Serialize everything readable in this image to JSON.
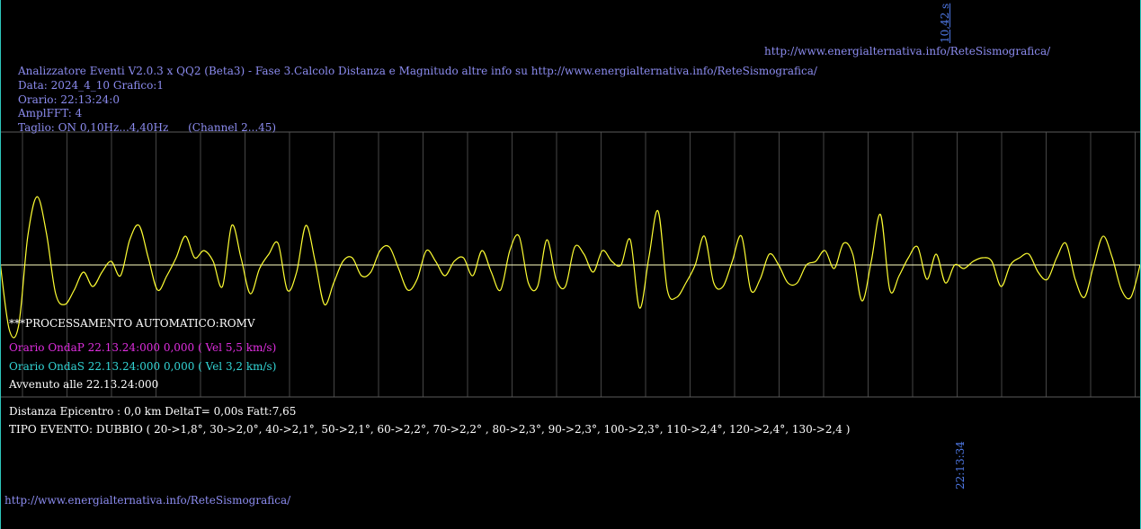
{
  "top_url": "http://www.energialternativa.info/ReteSismografica/",
  "time_marker_top": "10,42 s",
  "time_marker_bottom": "22:13:34",
  "header": {
    "title": "Analizzatore Eventi V2.0.3 x QQ2 (Beta3) - Fase 3.Calcolo Distanza e Magnitudo altre info su http://www.energialternativa.info/ReteSismografica/",
    "data": "Data: 2024_4_10 Grafico:1",
    "orario": "Orario: 22:13:24:0",
    "amplfft": "AmplFFT: 4",
    "taglio": "Taglio: ON 0,10Hz...4,40Hz",
    "channel": "(Channel 2...45)"
  },
  "processing": {
    "label": "***PROCESSAMENTO AUTOMATICO:ROMV",
    "onda_p": "Orario OndaP 22.13.24:000  0,000 ( Vel 5,5 km/s)",
    "onda_s": "Orario OndaS 22.13.24:000  0,000 ( Vel 3,2 km/s)",
    "avvenuto": "Avvenuto alle 22.13.24:000"
  },
  "result": {
    "distanza": "Distanza Epicentro : 0,0 km DeltaT= 0,00s  Fatt:7,65",
    "tipo_evento": "TIPO EVENTO: DUBBIO ( 20->1,8°, 30->2,0°, 40->2,1°, 50->2,1°, 60->2,2°, 70->2,2° , 80->2,3°, 90->2,3°, 100->2,3°, 110->2,4°, 120->2,4°, 130->2,4 )"
  },
  "bottom_url": "http://www.energialternativa.info/ReteSismografica/",
  "colors": {
    "background": "#000000",
    "waveform": "#ffff33",
    "baseline": "#ffffc0",
    "gridline": "#464646",
    "text_blue": "#8c8cf0",
    "onda_p": "#e02ee0",
    "onda_s": "#33d6d6",
    "edge_lines": "#2ec7bd",
    "marker_blue": "#4f79e6"
  },
  "chart_data": {
    "type": "line",
    "series": [
      {
        "values": [
          0.05,
          -0.9,
          -0.85,
          0.4,
          0.95,
          0.45,
          -0.4,
          -0.55,
          -0.35,
          -0.1,
          -0.3,
          -0.1,
          0.05,
          -0.15,
          0.35,
          0.55,
          0.1,
          -0.35,
          -0.15,
          0.1,
          0.4,
          0.1,
          0.2,
          0.05,
          -0.3,
          0.55,
          0.1,
          -0.4,
          -0.05,
          0.15,
          0.3,
          -0.35,
          -0.1,
          0.55,
          0.05,
          -0.55,
          -0.25,
          0.05,
          0.1,
          -0.15,
          -0.1,
          0.2,
          0.25,
          -0.05,
          -0.35,
          -0.2,
          0.2,
          0.05,
          -0.15,
          0.05,
          0.1,
          -0.15,
          0.2,
          -0.1,
          -0.35,
          0.2,
          0.4,
          -0.25,
          -0.3,
          0.35,
          -0.2,
          -0.3,
          0.25,
          0.15,
          -0.1,
          0.2,
          0.05,
          0.0,
          0.35,
          -0.6,
          0.1,
          0.75,
          -0.35,
          -0.45,
          -0.25,
          0.0,
          0.4,
          -0.25,
          -0.3,
          0.05,
          0.4,
          -0.35,
          -0.2,
          0.15,
          0.0,
          -0.25,
          -0.25,
          0.0,
          0.05,
          0.2,
          -0.05,
          0.3,
          0.15,
          -0.5,
          0.05,
          0.7,
          -0.35,
          -0.15,
          0.1,
          0.25,
          -0.2,
          0.15,
          -0.25,
          0.0,
          -0.05,
          0.05,
          0.1,
          0.05,
          -0.3,
          0.0,
          0.1,
          0.15,
          -0.1,
          -0.2,
          0.1,
          0.3,
          -0.2,
          -0.45,
          0.0,
          0.4,
          0.1,
          -0.35,
          -0.45,
          0.0
        ]
      }
    ],
    "ylim": [
      -1,
      1
    ],
    "grid": true
  }
}
